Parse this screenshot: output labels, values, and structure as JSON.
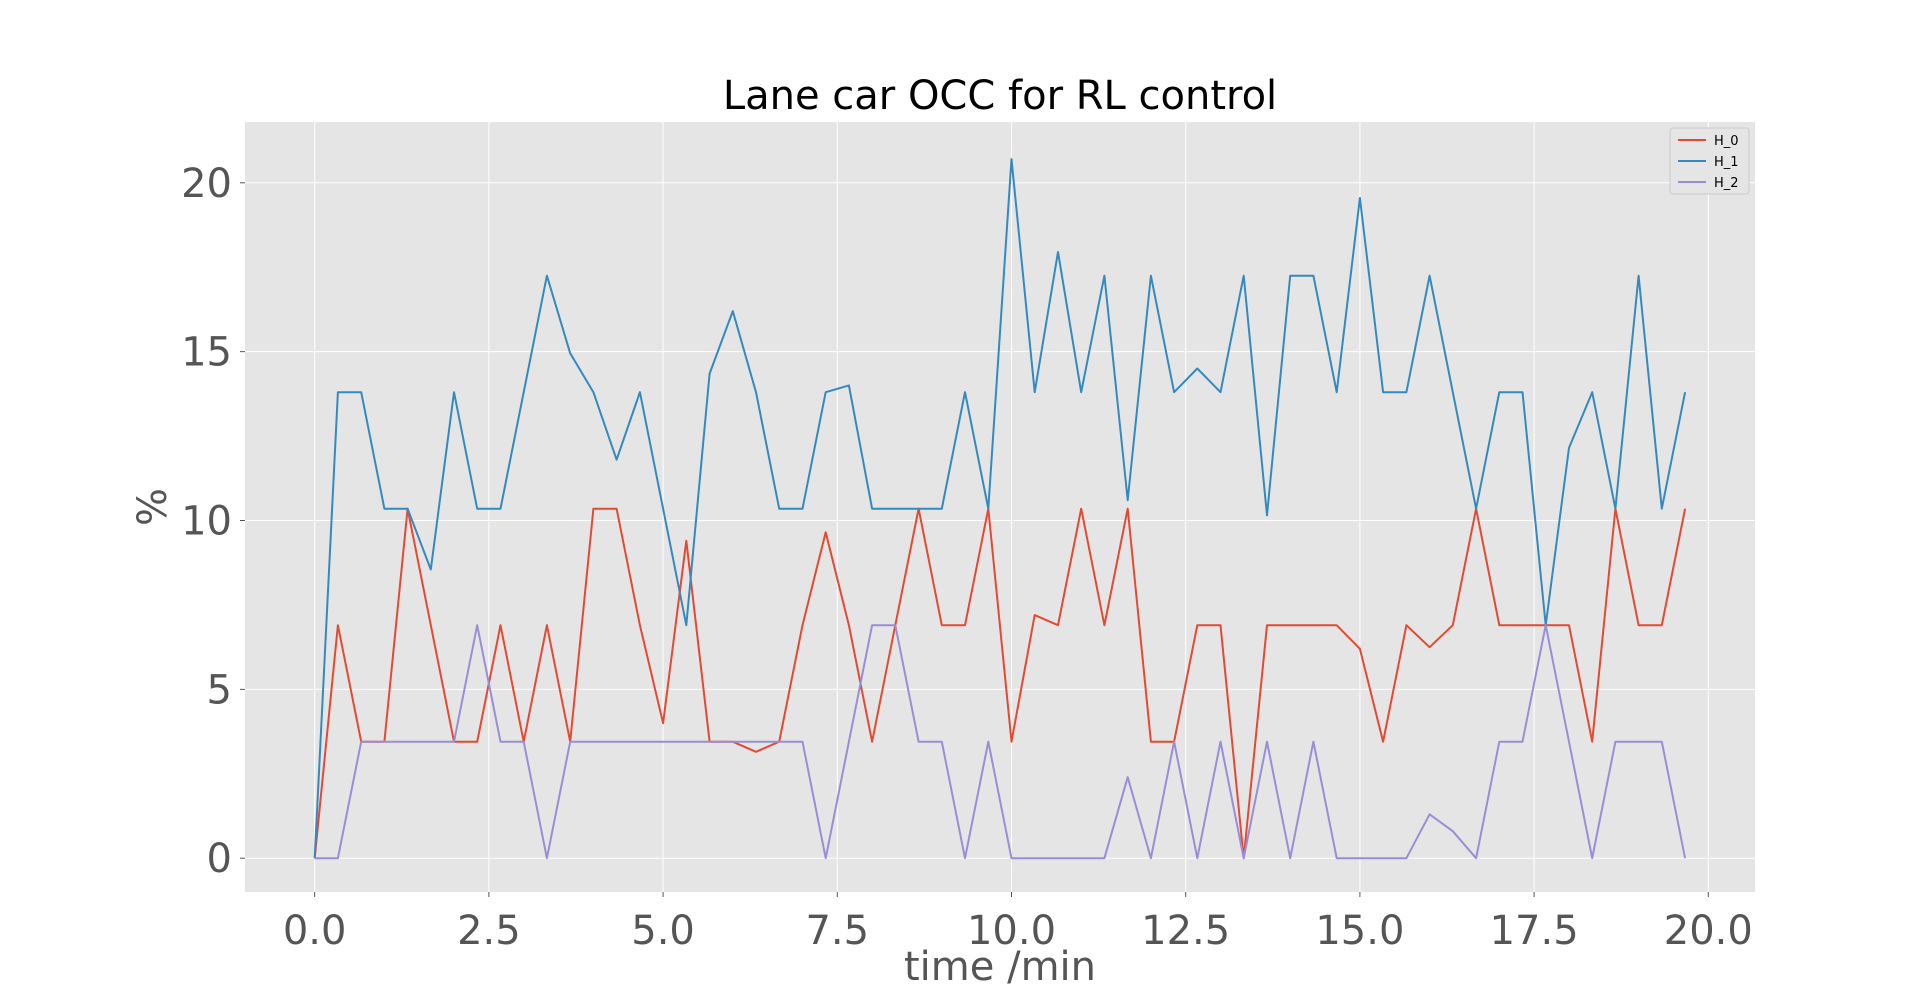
{
  "chart_data": {
    "type": "line",
    "title": "Lane car OCC for RL control",
    "xlabel": "time /min",
    "ylabel": "%",
    "xlim": [
      -1.0,
      20.67
    ],
    "ylim": [
      -1.0,
      21.8
    ],
    "xticks": [
      0.0,
      2.5,
      5.0,
      7.5,
      10.0,
      12.5,
      15.0,
      17.5,
      20.0
    ],
    "xtick_labels": [
      "0.0",
      "2.5",
      "5.0",
      "7.5",
      "10.0",
      "12.5",
      "15.0",
      "17.5",
      "20.0"
    ],
    "yticks": [
      0,
      5,
      10,
      15,
      20
    ],
    "ytick_labels": [
      "0",
      "5",
      "10",
      "15",
      "20"
    ],
    "grid": true,
    "legend_position": "top-right",
    "x": [
      0.0,
      0.333,
      0.667,
      1.0,
      1.333,
      1.667,
      2.0,
      2.333,
      2.667,
      3.0,
      3.333,
      3.667,
      4.0,
      4.333,
      4.667,
      5.0,
      5.333,
      5.667,
      6.0,
      6.333,
      6.667,
      7.0,
      7.333,
      7.667,
      8.0,
      8.333,
      8.667,
      9.0,
      9.333,
      9.667,
      10.0,
      10.333,
      10.667,
      11.0,
      11.333,
      11.667,
      12.0,
      12.333,
      12.667,
      13.0,
      13.333,
      13.667,
      14.0,
      14.333,
      14.667,
      15.0,
      15.333,
      15.667,
      16.0,
      16.333,
      16.667,
      17.0,
      17.333,
      17.667,
      18.0,
      18.333,
      18.667,
      19.0,
      19.333,
      19.667
    ],
    "series": [
      {
        "name": "H_0",
        "color": "#e24a33",
        "values": [
          0.0,
          6.9,
          3.45,
          3.45,
          10.35,
          6.9,
          3.45,
          3.45,
          6.9,
          3.45,
          6.9,
          3.45,
          10.35,
          10.35,
          6.9,
          4.0,
          9.4,
          3.45,
          3.45,
          3.15,
          3.45,
          6.9,
          9.65,
          6.9,
          3.45,
          6.9,
          10.35,
          6.9,
          6.9,
          10.35,
          3.45,
          7.2,
          6.9,
          10.35,
          6.9,
          10.35,
          3.45,
          3.45,
          6.9,
          6.9,
          0.0,
          6.9,
          6.9,
          6.9,
          6.9,
          6.2,
          3.45,
          6.9,
          6.25,
          6.9,
          10.35,
          6.9,
          6.9,
          6.9,
          6.9,
          3.45,
          10.35,
          6.9,
          6.9,
          10.35
        ]
      },
      {
        "name": "H_1",
        "color": "#348abd",
        "values": [
          0.0,
          13.8,
          13.8,
          10.35,
          10.35,
          8.55,
          13.8,
          10.35,
          10.35,
          13.8,
          17.25,
          14.95,
          13.8,
          11.8,
          13.8,
          10.35,
          6.9,
          14.35,
          16.2,
          13.8,
          10.35,
          10.35,
          13.8,
          14.0,
          10.35,
          10.35,
          10.35,
          10.35,
          13.8,
          10.35,
          20.7,
          13.8,
          17.95,
          13.8,
          17.25,
          10.6,
          17.25,
          13.8,
          14.5,
          13.8,
          17.25,
          10.15,
          17.25,
          17.25,
          13.8,
          19.55,
          13.8,
          13.8,
          17.25,
          13.8,
          10.35,
          13.8,
          13.8,
          6.9,
          12.15,
          13.8,
          10.35,
          17.25,
          10.35,
          13.8
        ]
      },
      {
        "name": "H_2",
        "color": "#988ed5",
        "values": [
          0.0,
          0.0,
          3.45,
          3.45,
          3.45,
          3.45,
          3.45,
          6.9,
          3.45,
          3.45,
          0.0,
          3.45,
          3.45,
          3.45,
          3.45,
          3.45,
          3.45,
          3.45,
          3.45,
          3.45,
          3.45,
          3.45,
          0.0,
          3.45,
          6.9,
          6.9,
          3.45,
          3.45,
          0.0,
          3.45,
          0.0,
          0.0,
          0.0,
          0.0,
          0.0,
          2.4,
          0.0,
          3.45,
          0.0,
          3.45,
          0.0,
          3.45,
          0.0,
          3.45,
          0.0,
          0.0,
          0.0,
          0.0,
          1.3,
          0.8,
          0.0,
          3.45,
          3.45,
          6.9,
          3.45,
          0.0,
          3.45,
          3.45,
          3.45,
          0.0
        ]
      }
    ]
  }
}
